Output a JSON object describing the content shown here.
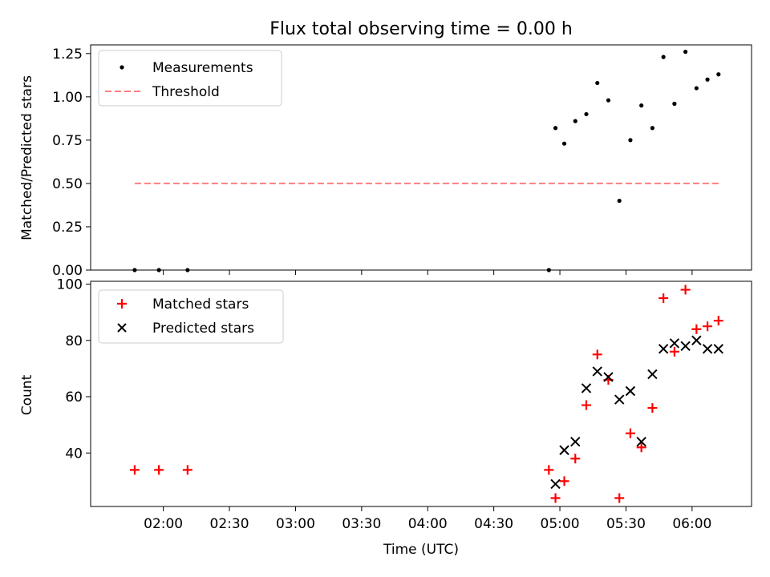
{
  "chart_data": [
    {
      "type": "scatter",
      "title": "Flux total observing time = 0.00 h",
      "xlabel": "",
      "ylabel": "Matched/Predicted stars",
      "ylim": [
        0,
        1.3
      ],
      "yticks": [
        "0.00",
        "0.25",
        "0.50",
        "0.75",
        "1.00",
        "1.25"
      ],
      "legend": "top-left",
      "series": [
        {
          "name": "Measurements",
          "marker": "dot",
          "color": "#000000",
          "x": [
            "01:47",
            "01:58",
            "02:11",
            "04:55",
            "04:58",
            "05:02",
            "05:07",
            "05:12",
            "05:17",
            "05:22",
            "05:27",
            "05:32",
            "05:37",
            "05:42",
            "05:47",
            "05:52",
            "05:57",
            "06:02",
            "06:07",
            "06:12"
          ],
          "y": [
            0.0,
            0.0,
            0.0,
            0.0,
            0.82,
            0.73,
            0.86,
            0.9,
            1.08,
            0.98,
            0.4,
            0.75,
            0.95,
            0.82,
            1.23,
            0.96,
            1.26,
            1.05,
            1.1,
            1.13
          ]
        },
        {
          "name": "Threshold",
          "marker": "dashed-line",
          "color": "#ff7f7f",
          "x": [
            "01:47",
            "06:12"
          ],
          "y": [
            0.5,
            0.5
          ]
        }
      ]
    },
    {
      "type": "scatter",
      "xlabel": "Time (UTC)",
      "ylabel": "Count",
      "ylim": [
        21,
        101
      ],
      "yticks": [
        "40",
        "60",
        "80",
        "100"
      ],
      "xlim": [
        "01:27",
        "06:27"
      ],
      "xticks": [
        "02:00",
        "02:30",
        "03:00",
        "03:30",
        "04:00",
        "04:30",
        "05:00",
        "05:30",
        "06:00"
      ],
      "legend": "top-left",
      "series": [
        {
          "name": "Matched stars",
          "marker": "plus",
          "color": "#ff0000",
          "x": [
            "01:47",
            "01:58",
            "02:11",
            "04:55",
            "04:58",
            "05:02",
            "05:07",
            "05:12",
            "05:17",
            "05:22",
            "05:27",
            "05:32",
            "05:37",
            "05:42",
            "05:47",
            "05:52",
            "05:57",
            "06:02",
            "06:07",
            "06:12"
          ],
          "y": [
            34,
            34,
            34,
            34,
            24,
            30,
            38,
            57,
            75,
            66,
            24,
            47,
            42,
            56,
            95,
            76,
            98,
            84,
            85,
            87
          ]
        },
        {
          "name": "Predicted stars",
          "marker": "x",
          "color": "#000000",
          "x": [
            "04:58",
            "05:02",
            "05:07",
            "05:12",
            "05:17",
            "05:22",
            "05:27",
            "05:32",
            "05:37",
            "05:42",
            "05:47",
            "05:52",
            "05:57",
            "06:02",
            "06:07",
            "06:12"
          ],
          "y": [
            29,
            41,
            44,
            63,
            69,
            67,
            59,
            62,
            44,
            68,
            77,
            79,
            78,
            80,
            77,
            77
          ]
        }
      ]
    }
  ]
}
